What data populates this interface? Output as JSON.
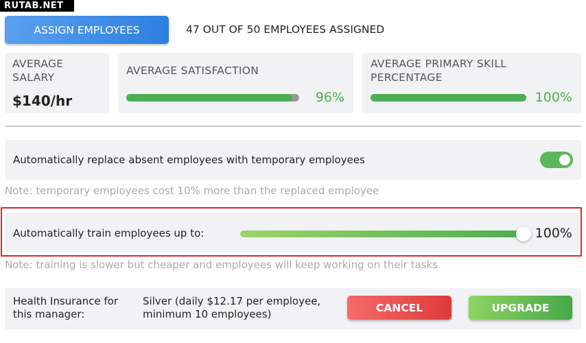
{
  "watermark": "RUTAB.NET",
  "header": {
    "assign_button": "ASSIGN EMPLOYEES",
    "assigned_status": "47 OUT OF 50 EMPLOYEES ASSIGNED"
  },
  "stats": {
    "salary": {
      "title": [
        "AVERAGE",
        "SALARY"
      ],
      "value": "$140/hr"
    },
    "satisfaction": {
      "title": [
        "AVERAGE SATISFACTION"
      ],
      "value": 96,
      "value_label": "96%"
    },
    "skill": {
      "title": [
        "AVERAGE PRIMARY SKILL",
        "PERCENTAGE"
      ],
      "value": 100,
      "value_label": "100%"
    }
  },
  "replace_absent": {
    "label": "Automatically replace absent employees with temporary employees",
    "enabled": true,
    "note": "Note: temporary employees cost 10% more than the replaced employee"
  },
  "auto_train": {
    "label": "Automatically train employees up to:",
    "value": 100,
    "value_label": "100%",
    "note": "Note: training is slower but cheaper and employees will keep working on their tasks"
  },
  "insurance": {
    "label": [
      "Health Insurance for",
      "this manager:"
    ],
    "plan": [
      "Silver (daily $12.17 per employee,",
      "minimum 10 employees)"
    ],
    "cancel_button": "CANCEL",
    "upgrade_button": "UPGRADE"
  }
}
